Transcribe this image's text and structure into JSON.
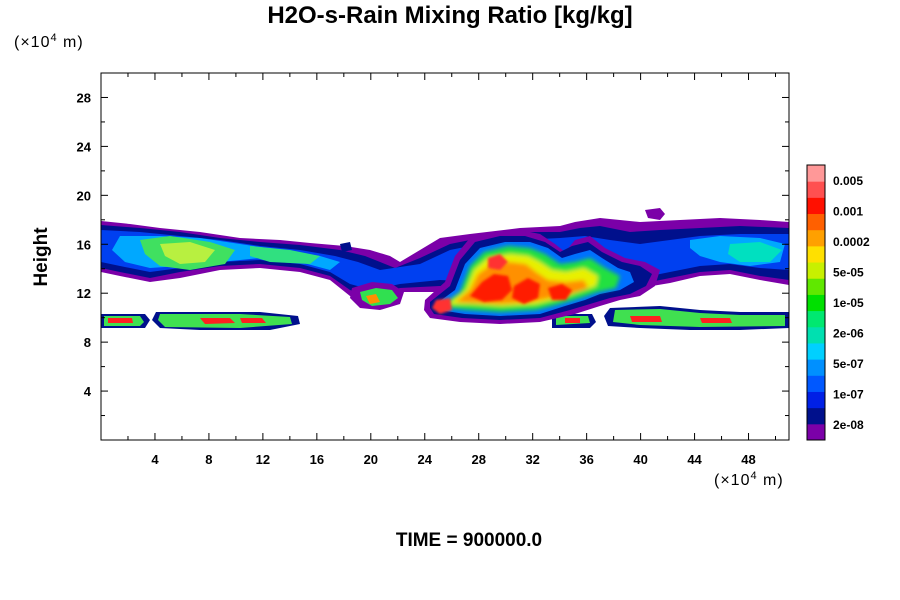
{
  "chart_data": {
    "type": "heatmap",
    "title": "H2O-s-Rain Mixing Ratio [kg/kg]",
    "ylabel": "Height",
    "x_unit": "(×10",
    "x_unit_exp": "4",
    "x_unit_tail": " m)",
    "y_unit": "(×10",
    "y_unit_exp": "4",
    "y_unit_tail": " m)",
    "footer": "TIME = 900000.0",
    "xlim": [
      0,
      51
    ],
    "ylim": [
      0,
      30
    ],
    "x_ticks": [
      "4",
      "8",
      "12",
      "16",
      "20",
      "24",
      "28",
      "32",
      "36",
      "40",
      "44",
      "48"
    ],
    "y_ticks": [
      "4",
      "8",
      "12",
      "16",
      "20",
      "24",
      "28"
    ],
    "colorbar_labels": [
      "0.005",
      "0.001",
      "0.0002",
      "5e-05",
      "1e-05",
      "2e-06",
      "5e-07",
      "1e-07",
      "2e-08"
    ],
    "colorbar_colors": [
      "#7b00a8",
      "#00108c",
      "#0020e6",
      "#0058ff",
      "#0090ff",
      "#00d0ff",
      "#00e0b0",
      "#00e870",
      "#00e000",
      "#60e800",
      "#c8f000",
      "#ffe000",
      "#ffa000",
      "#ff6000",
      "#ff1000",
      "#ff5050",
      "#ff9898"
    ],
    "layers": [
      {
        "name": "upper cloud band",
        "y_range": [
          12,
          18
        ]
      },
      {
        "name": "lower rain layer",
        "y_range": [
          9,
          11
        ]
      },
      {
        "name": "convective core",
        "x_range": [
          23,
          37
        ],
        "y_range": [
          10,
          17
        ],
        "max_level": "0.001"
      }
    ]
  }
}
